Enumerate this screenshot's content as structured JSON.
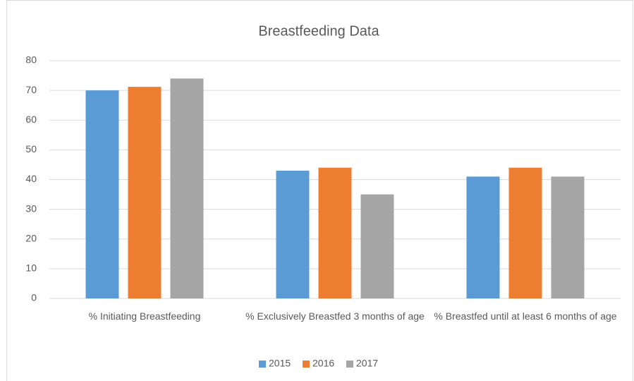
{
  "chart_data": {
    "type": "bar",
    "title": "Breastfeeding Data",
    "categories": [
      "% Initiating Breastfeeding",
      "% Exclusively Breastfed 3 months of age",
      "% Breastfed until at least 6 months of age"
    ],
    "series": [
      {
        "name": "2015",
        "color": "#5b9bd5",
        "values": [
          70,
          43,
          41
        ]
      },
      {
        "name": "2016",
        "color": "#ed7d31",
        "values": [
          71.2,
          44,
          44
        ]
      },
      {
        "name": "2017",
        "color": "#a5a5a5",
        "values": [
          74,
          35,
          41
        ]
      }
    ],
    "ylim": [
      0,
      80
    ],
    "yticks": [
      0,
      10,
      20,
      30,
      40,
      50,
      60,
      70,
      80
    ],
    "grid": true,
    "legend": "bottom"
  }
}
